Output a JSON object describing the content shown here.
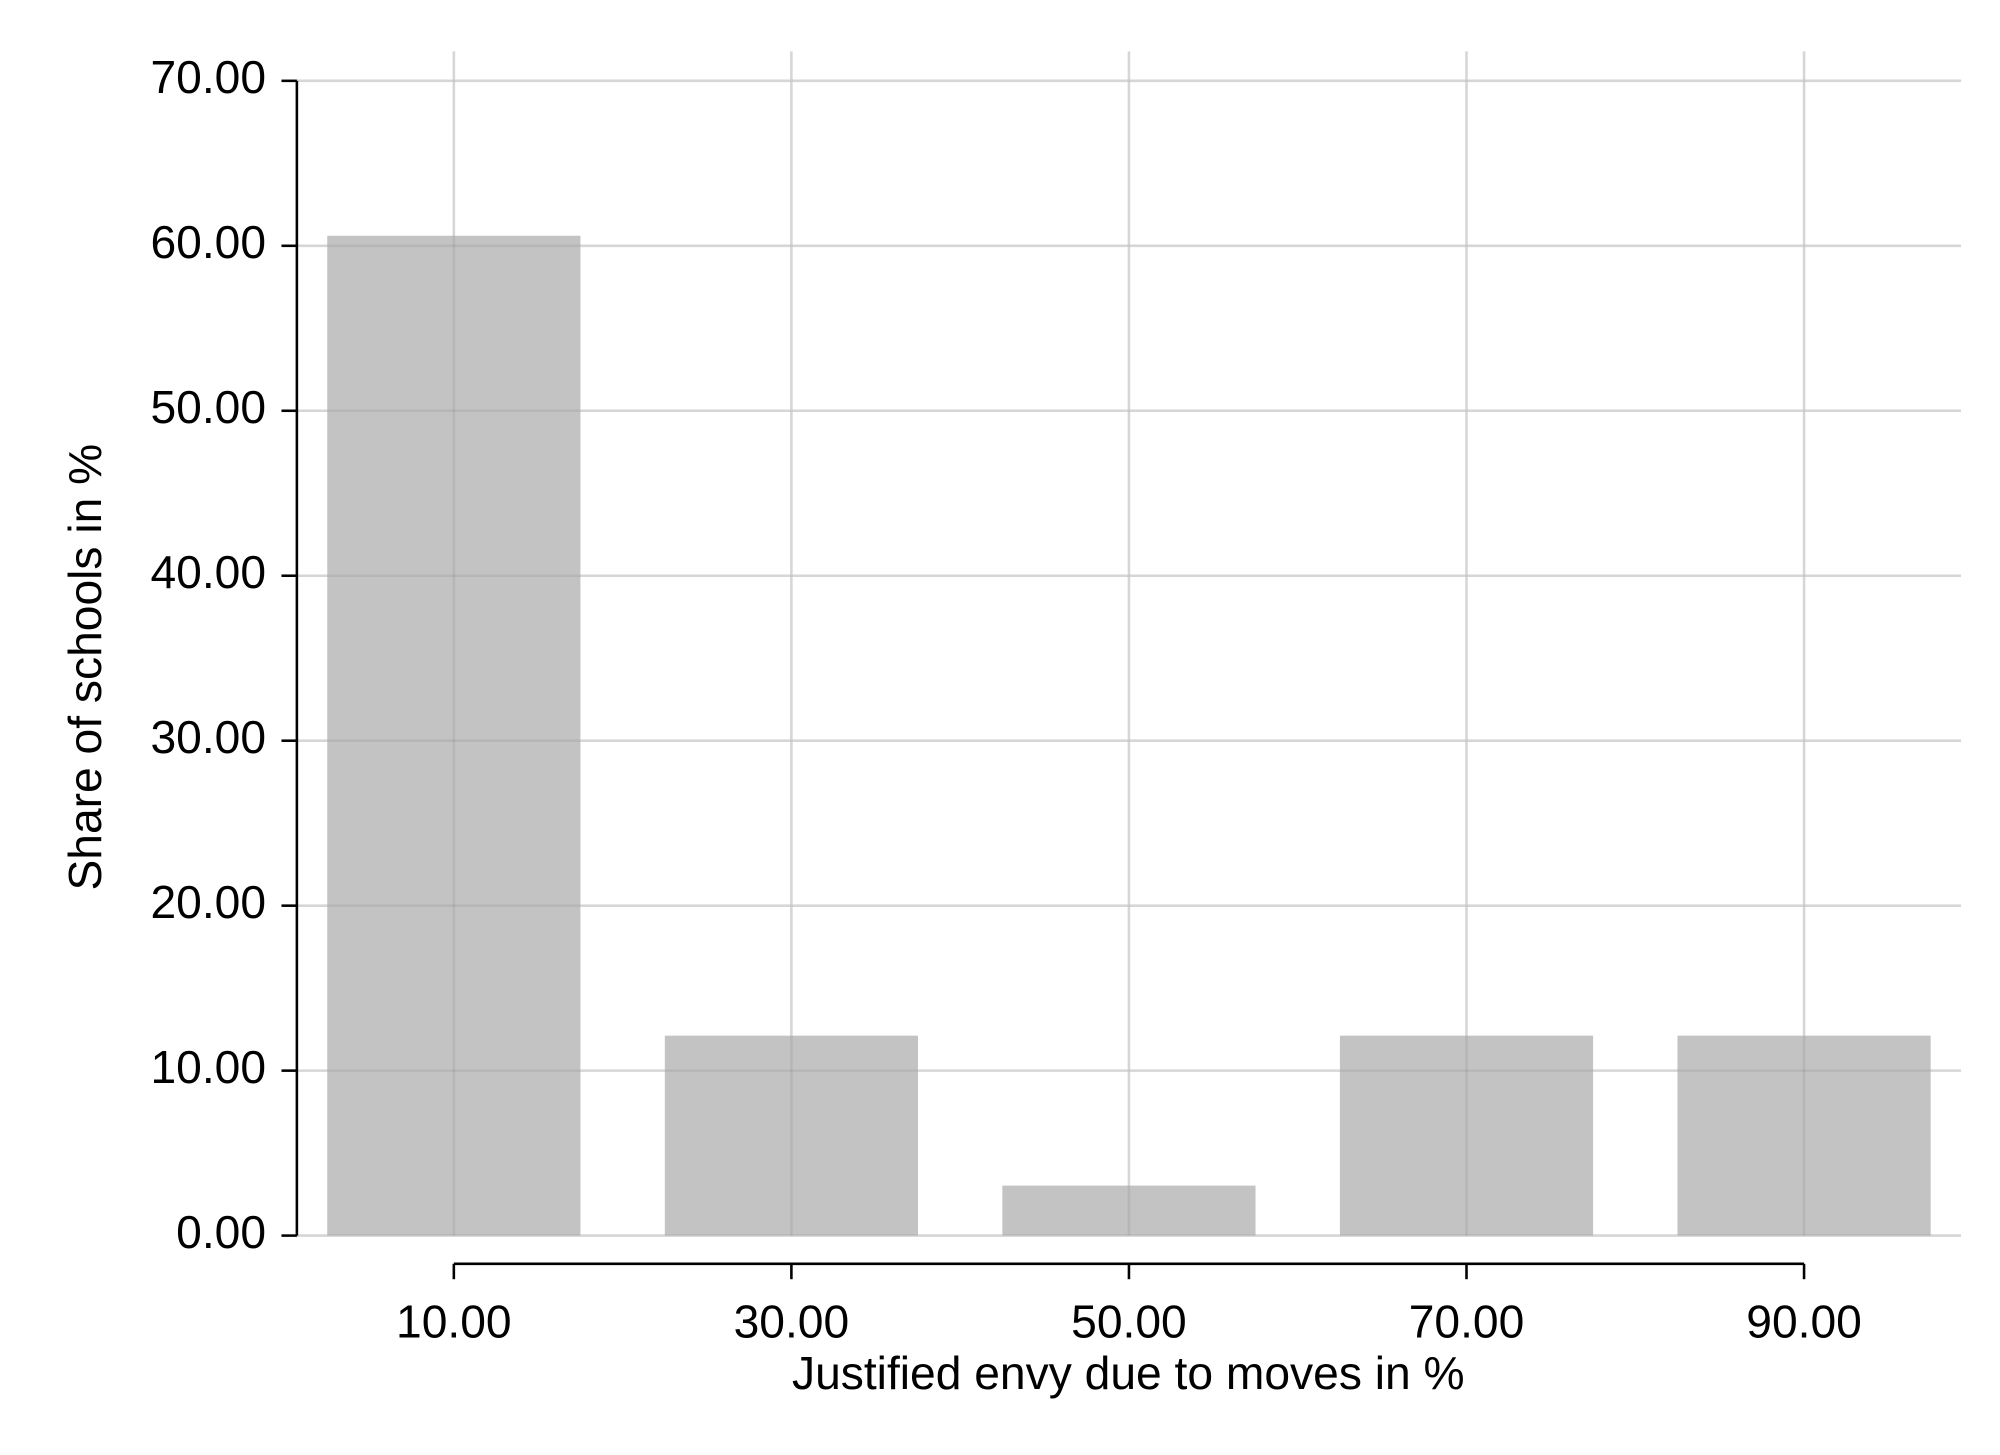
{
  "chart_data": {
    "type": "bar",
    "x_label": "Justified envy due to moves in %",
    "y_label": "Share of schools in %",
    "x": [
      10,
      30,
      50,
      70,
      90
    ],
    "values": [
      60.61,
      12.12,
      3.03,
      12.12,
      12.12
    ],
    "color": "#c0c0c0",
    "xlim": [
      0.7,
      99.3
    ],
    "xticks": [
      {
        "value": 10,
        "label": "10.00"
      },
      {
        "value": 30,
        "label": "30.00"
      },
      {
        "value": 50,
        "label": "50.00"
      },
      {
        "value": 70,
        "label": "70.00"
      },
      {
        "value": 90,
        "label": "90.00"
      }
    ],
    "ylim": [
      0,
      70
    ],
    "yticks": [
      {
        "value": 0,
        "label": "0.00"
      },
      {
        "value": 10,
        "label": "10.00"
      },
      {
        "value": 20,
        "label": "20.00"
      },
      {
        "value": 30,
        "label": "30.00"
      },
      {
        "value": 40,
        "label": "40.00"
      },
      {
        "value": 50,
        "label": "50.00"
      },
      {
        "value": 60,
        "label": "60.00"
      },
      {
        "value": 70,
        "label": "70.00"
      }
    ],
    "grid": true
  }
}
